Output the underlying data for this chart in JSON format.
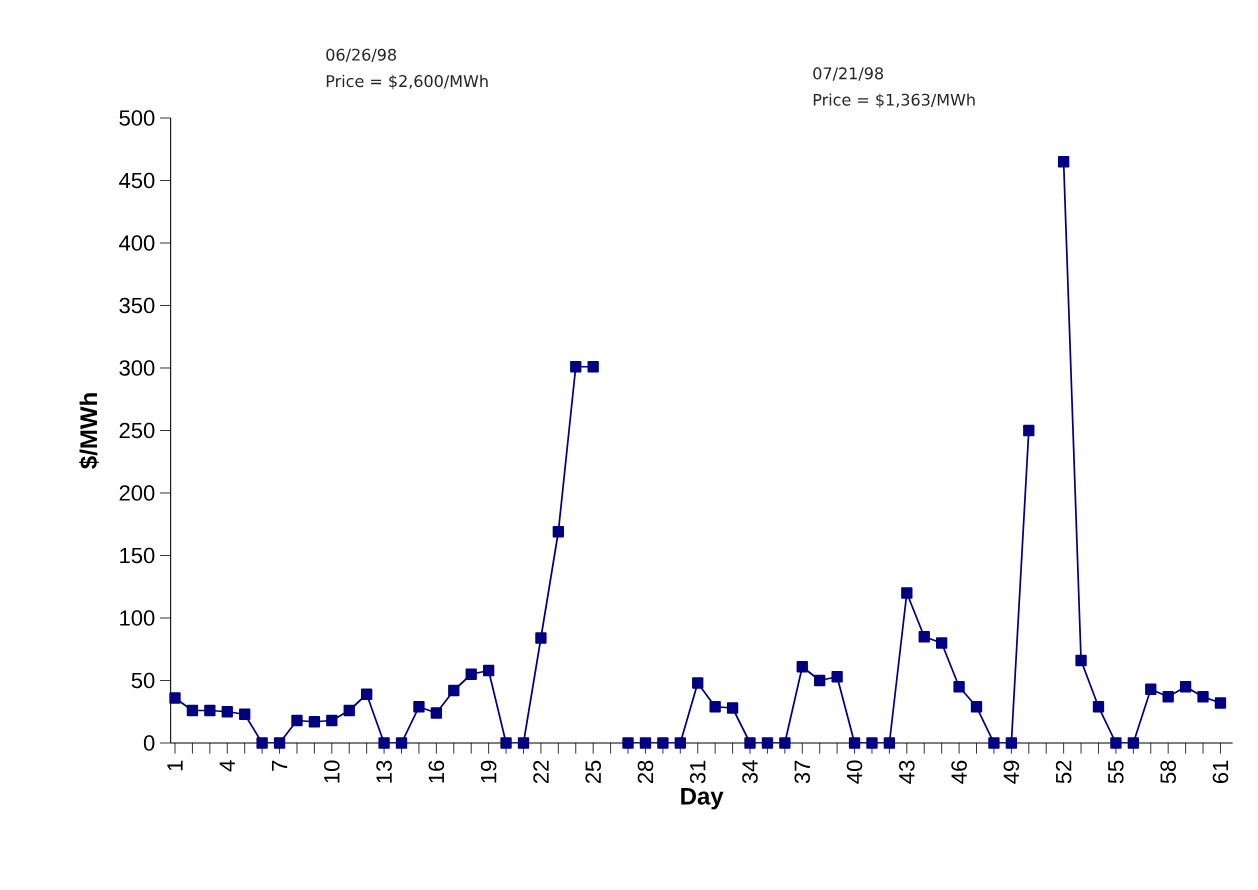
{
  "chart_data": {
    "type": "line",
    "xlabel": "Day",
    "ylabel": "$/MWh",
    "categories": [
      "1",
      null,
      null,
      "4",
      null,
      null,
      "7",
      null,
      null,
      "10",
      null,
      null,
      "13",
      null,
      null,
      "16",
      null,
      null,
      "19",
      null,
      null,
      "22",
      null,
      null,
      "25",
      null,
      null,
      "28",
      null,
      null,
      "31",
      null,
      null,
      "34",
      null,
      null,
      "37",
      null,
      null,
      "40",
      null,
      null,
      "43",
      null,
      null,
      "46",
      null,
      null,
      "49",
      null,
      null,
      "52",
      null,
      null,
      "55",
      null,
      null,
      "58",
      null,
      null,
      "61"
    ],
    "values": [
      36,
      26,
      26,
      25,
      23,
      0,
      0,
      18,
      17,
      18,
      26,
      39,
      0,
      0,
      29,
      24,
      42,
      55,
      58,
      0,
      0,
      84,
      169,
      301,
      301,
      null,
      0,
      0,
      0,
      0,
      48,
      29,
      28,
      0,
      0,
      0,
      61,
      50,
      53,
      0,
      0,
      0,
      120,
      85,
      80,
      45,
      29,
      0,
      0,
      250,
      null,
      465,
      66,
      29,
      0,
      0,
      43,
      37,
      45,
      37,
      32
    ],
    "color": "#000080",
    "marker": "square",
    "line_style": "solid",
    "ylim": [
      0,
      500
    ],
    "yticks": [
      0,
      50,
      100,
      150,
      200,
      250,
      300,
      350,
      400,
      450,
      500
    ],
    "annotations": [
      "06/26/98",
      "Price = $2,600/MWh",
      "07/21/98",
      "Price = $1,363/MWh"
    ]
  }
}
